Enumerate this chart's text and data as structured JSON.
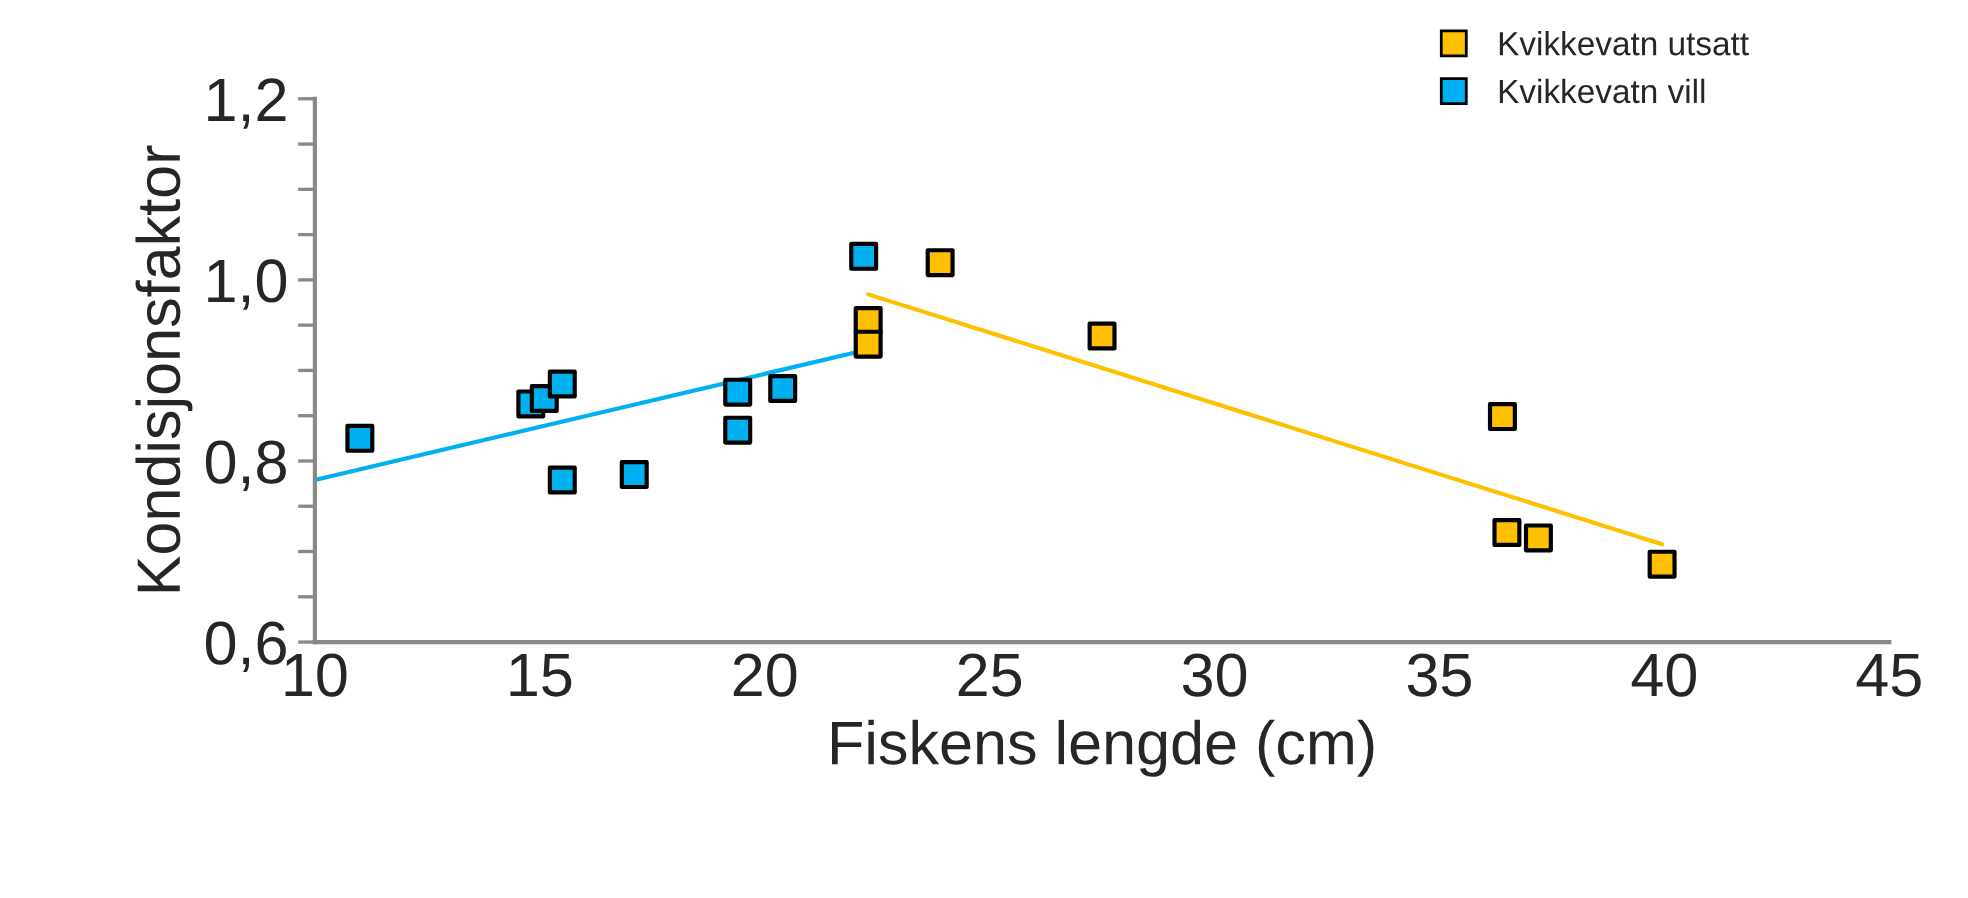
{
  "chart_data": {
    "type": "scatter",
    "xlabel": "Fiskens lengde (cm)",
    "ylabel": "Kondisjonsfaktor",
    "xlim": [
      10,
      45
    ],
    "xticks": [
      10,
      15,
      20,
      25,
      30,
      35,
      40,
      45
    ],
    "ylim": [
      0.6,
      1.2
    ],
    "yticks": [
      {
        "value": 0.6,
        "label": "0,6"
      },
      {
        "value": 0.65,
        "label": null
      },
      {
        "value": 0.7,
        "label": null
      },
      {
        "value": 0.75,
        "label": null
      },
      {
        "value": 0.8,
        "label": "0,8"
      },
      {
        "value": 0.85,
        "label": null
      },
      {
        "value": 0.9,
        "label": null
      },
      {
        "value": 0.95,
        "label": null
      },
      {
        "value": 1.0,
        "label": "1,0"
      },
      {
        "value": 1.05,
        "label": null
      },
      {
        "value": 1.1,
        "label": null
      },
      {
        "value": 1.15,
        "label": null
      },
      {
        "value": 1.2,
        "label": "1,2"
      }
    ],
    "marker": "square",
    "grid": false,
    "legend": "top right",
    "series": [
      {
        "name": "Kvikkevatn utsatt",
        "color": "#ffc000",
        "x": [
          22.3,
          22.3,
          23.9,
          27.5,
          36.4,
          36.5,
          37.2,
          39.95
        ],
        "values": [
          0.955,
          0.929,
          1.019,
          0.938,
          0.849,
          0.721,
          0.715,
          0.686
        ]
      },
      {
        "name": "Kvikkevatn vill",
        "color": "#00b0f0",
        "x": [
          11.0,
          14.8,
          15.1,
          15.5,
          15.5,
          17.1,
          19.4,
          19.4,
          20.4,
          22.2
        ],
        "values": [
          0.825,
          0.863,
          0.869,
          0.885,
          0.779,
          0.785,
          0.876,
          0.834,
          0.88,
          1.026
        ]
      },
      {
        "type": "line",
        "marker": "none",
        "color": "#ffc000",
        "x": [
          22.3,
          39.95
        ],
        "values": [
          0.984,
          0.708
        ]
      },
      {
        "type": "line",
        "marker": "none",
        "color": "#00b0f0",
        "x": [
          10,
          22.2
        ],
        "values": [
          0.779,
          0.922
        ]
      }
    ]
  }
}
